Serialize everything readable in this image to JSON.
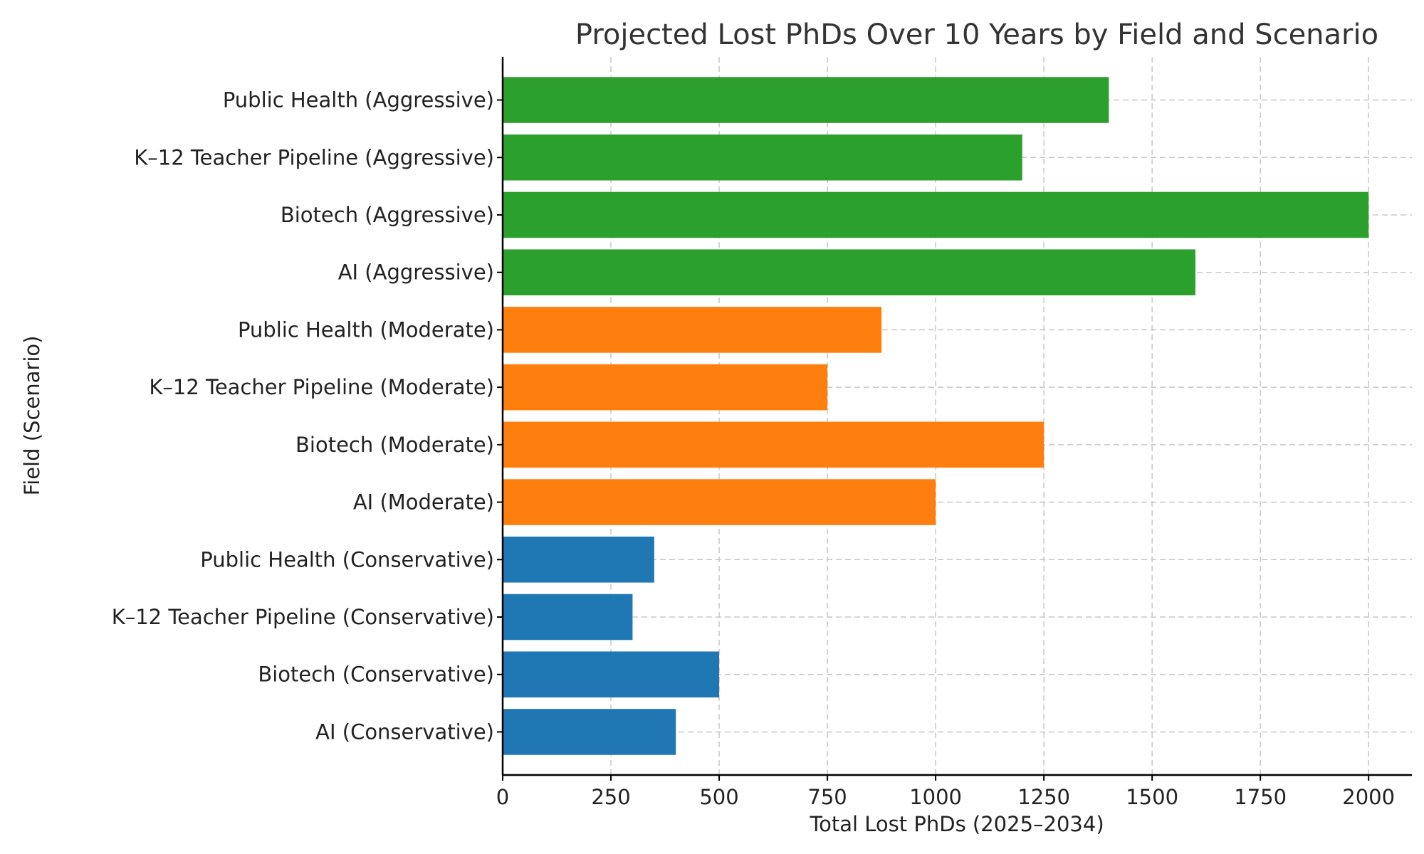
{
  "chart_data": {
    "type": "bar",
    "orientation": "horizontal",
    "title": "Projected Lost PhDs Over 10 Years by Field and Scenario",
    "xlabel": "Total Lost PhDs (2025–2034)",
    "ylabel": "Field (Scenario)",
    "xlim": [
      0,
      2100
    ],
    "xticks": [
      "0",
      "250",
      "500",
      "750",
      "1000",
      "1250",
      "1500",
      "1750",
      "2000"
    ],
    "grid": true,
    "categories": [
      "AI (Conservative)",
      "Biotech (Conservative)",
      "K–12 Teacher Pipeline (Conservative)",
      "Public Health (Conservative)",
      "AI (Moderate)",
      "Biotech (Moderate)",
      "K–12 Teacher Pipeline (Moderate)",
      "Public Health (Moderate)",
      "AI (Aggressive)",
      "Biotech (Aggressive)",
      "K–12 Teacher Pipeline (Aggressive)",
      "Public Health (Aggressive)"
    ],
    "values": [
      400,
      500,
      300,
      350,
      1000,
      1250,
      750,
      875,
      1600,
      2000,
      1200,
      1400
    ],
    "colors": [
      "#1f77b4",
      "#1f77b4",
      "#1f77b4",
      "#1f77b4",
      "#ff7f0e",
      "#ff7f0e",
      "#ff7f0e",
      "#ff7f0e",
      "#2ca02c",
      "#2ca02c",
      "#2ca02c",
      "#2ca02c"
    ]
  }
}
